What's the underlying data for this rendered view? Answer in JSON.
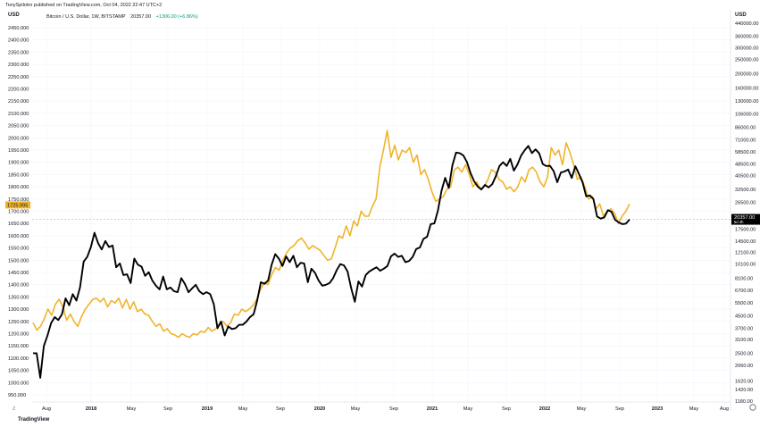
{
  "header": {
    "published": "TonySpilotro published on TradingView.com, Oct 04, 2022 22:47 UTC+2",
    "left_currency": "USD",
    "right_currency": "USD",
    "brand": "TradingView",
    "tz_label": "Z"
  },
  "legend": {
    "symbol": "Bitcoin / U.S. Dollar, 1W, BITSTAMP",
    "last": "20357.00",
    "change": "+1306.00 (+6.86%)"
  },
  "colors": {
    "gold": "#f0b429",
    "btc": "#000000",
    "grid": "#f0f3fa",
    "dashed": "#b2b5be"
  },
  "chart_data": {
    "type": "line",
    "left_axis": {
      "scale": "linear",
      "range": [
        900,
        2450
      ],
      "ticks": [
        "950.000",
        "1000.000",
        "1050.000",
        "1100.000",
        "1150.000",
        "1200.000",
        "1250.000",
        "1300.000",
        "1350.000",
        "1400.000",
        "1450.000",
        "1500.000",
        "1550.000",
        "1600.000",
        "1650.000",
        "1700.000",
        "1750.000",
        "1800.000",
        "1850.000",
        "1900.000",
        "1950.000",
        "2000.000",
        "2050.000",
        "2100.000",
        "2150.000",
        "2200.000",
        "2250.000",
        "2300.000",
        "2350.000",
        "2400.000",
        "2450.000"
      ],
      "last_value_label": "1725.995"
    },
    "right_axis": {
      "scale": "log",
      "range": [
        1180,
        440000
      ],
      "ticks": [
        "1180.00",
        "1420.00",
        "1620.00",
        "2060.00",
        "2500.00",
        "3100.00",
        "3700.00",
        "4500.00",
        "5500.00",
        "6700.00",
        "8100.00",
        "10100.00",
        "12100.00",
        "14500.00",
        "17500.00",
        "21000.00",
        "26500.00",
        "32500.00",
        "40500.00",
        "48500.00",
        "58500.00",
        "71000.00",
        "86000.00",
        "106000.00",
        "130000.00",
        "160000.00",
        "200000.00",
        "250000.00",
        "300000.00",
        "360000.00",
        "440000.00"
      ],
      "last_value_label": "20357.00",
      "last_value_sublabel": "5d 4h"
    },
    "x_axis": {
      "ticks": [
        "Aug",
        "2018",
        "May",
        "Sep",
        "2019",
        "May",
        "Sep",
        "2020",
        "May",
        "Sep",
        "2021",
        "May",
        "Sep",
        "2022",
        "May",
        "Sep",
        "2023",
        "May",
        "Aug"
      ]
    },
    "series": [
      {
        "color": "gold",
        "axis": "left",
        "values": [
          1245,
          1215,
          1230,
          1260,
          1300,
          1275,
          1320,
          1340,
          1310,
          1255,
          1280,
          1250,
          1230,
          1270,
          1300,
          1320,
          1340,
          1345,
          1330,
          1345,
          1310,
          1335,
          1325,
          1345,
          1305,
          1340,
          1300,
          1330,
          1290,
          1300,
          1280,
          1275,
          1250,
          1230,
          1240,
          1210,
          1220,
          1200,
          1195,
          1185,
          1200,
          1190,
          1185,
          1200,
          1195,
          1210,
          1205,
          1225,
          1210,
          1220,
          1240,
          1250,
          1230,
          1245,
          1280,
          1275,
          1300,
          1290,
          1300,
          1315,
          1340,
          1380,
          1410,
          1400,
          1440,
          1470,
          1460,
          1500,
          1530,
          1550,
          1560,
          1580,
          1590,
          1570,
          1545,
          1560,
          1550,
          1540,
          1520,
          1500,
          1505,
          1550,
          1600,
          1590,
          1640,
          1600,
          1660,
          1640,
          1700,
          1680,
          1680,
          1720,
          1750,
          1880,
          1950,
          2030,
          1920,
          1970,
          1910,
          1950,
          1940,
          1960,
          1900,
          1930,
          1850,
          1870,
          1830,
          1780,
          1740,
          1750,
          1760,
          1790,
          1800,
          1870,
          1880,
          1860,
          1890,
          1850,
          1800,
          1820,
          1790,
          1800,
          1830,
          1870,
          1860,
          1830,
          1820,
          1790,
          1800,
          1780,
          1800,
          1840,
          1820,
          1870,
          1880,
          1860,
          1820,
          1800,
          1840,
          1960,
          1930,
          1950,
          1890,
          1980,
          1940,
          1890,
          1830,
          1840,
          1800,
          1750,
          1760,
          1710,
          1730,
          1680,
          1700,
          1710,
          1690,
          1650,
          1680,
          1700,
          1730
        ]
      },
      {
        "name": "Bitcoin / U.S. Dollar",
        "color": "btc",
        "axis": "right",
        "values": [
          2500,
          2500,
          1700,
          2800,
          3300,
          4000,
          4400,
          4200,
          4600,
          5900,
          5300,
          6300,
          5700,
          7000,
          10500,
          11300,
          13200,
          16500,
          14000,
          12700,
          14500,
          13200,
          13500,
          9600,
          10200,
          8500,
          8600,
          7500,
          11000,
          10000,
          9700,
          8400,
          8900,
          7800,
          7200,
          6800,
          8300,
          6800,
          7000,
          6600,
          6500,
          8100,
          7400,
          6500,
          6900,
          7300,
          6600,
          6300,
          6500,
          6300,
          5400,
          3700,
          4100,
          3300,
          3800,
          3650,
          3700,
          3900,
          3900,
          4100,
          4400,
          4600,
          5700,
          7600,
          7400,
          7800,
          10000,
          11800,
          11000,
          9800,
          11400,
          10400,
          11500,
          9600,
          10300,
          10200,
          7600,
          9400,
          8800,
          7800,
          7200,
          7300,
          7500,
          8100,
          9200,
          10100,
          9900,
          9000,
          6900,
          5600,
          7700,
          7100,
          8500,
          9000,
          9300,
          9600,
          9100,
          9400,
          9800,
          11400,
          11900,
          11300,
          11500,
          10400,
          10600,
          11300,
          12800,
          13100,
          15000,
          15500,
          18900,
          19100,
          23400,
          32000,
          39000,
          33300,
          47500,
          58000,
          57500,
          55500,
          50100,
          42000,
          37000,
          34000,
          32500,
          34900,
          33600,
          35300,
          40000,
          47000,
          49800,
          47000,
          52500,
          43700,
          48200,
          55300,
          60200,
          64300,
          57500,
          61000,
          57200,
          48400,
          46900,
          47100,
          43300,
          36400,
          42400,
          43100,
          44400,
          38900,
          46800,
          41500,
          36300,
          29200,
          29600,
          28000,
          21300,
          20600,
          21000,
          23500,
          22900,
          20200,
          19400,
          18900,
          19050,
          20357
        ]
      }
    ]
  }
}
